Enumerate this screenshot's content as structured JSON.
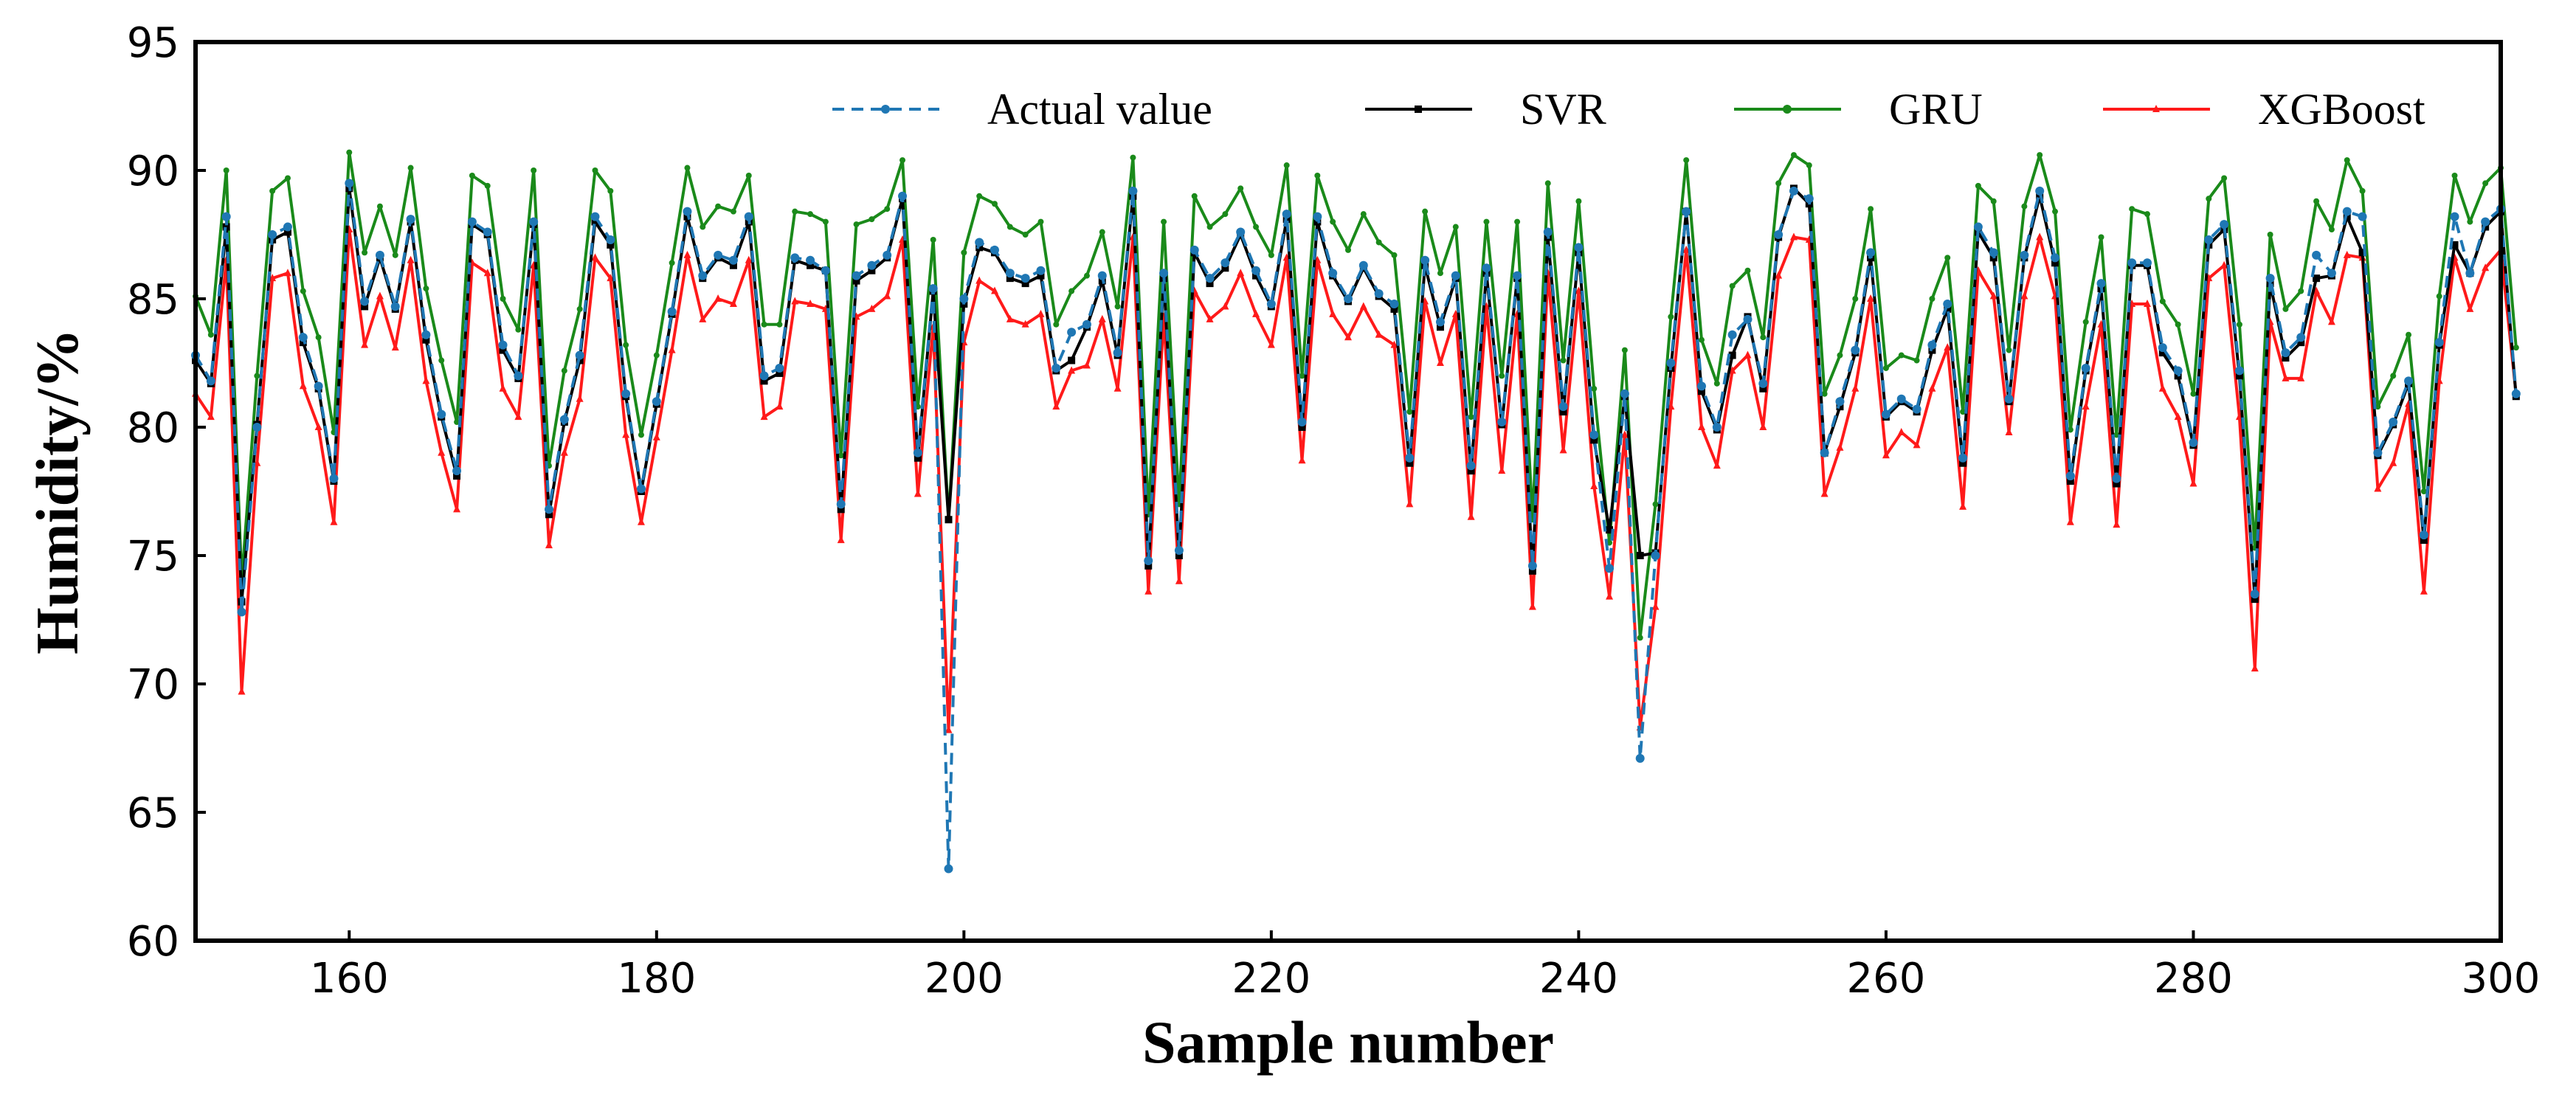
{
  "chart_data": {
    "type": "line",
    "title": "",
    "xlabel": "Sample number",
    "ylabel": "Humidity/%",
    "xlim": [
      150,
      300
    ],
    "ylim": [
      60,
      95
    ],
    "xticks": [
      160,
      180,
      200,
      220,
      240,
      260,
      280,
      300
    ],
    "yticks": [
      60,
      65,
      70,
      75,
      80,
      85,
      90,
      95
    ],
    "grid": false,
    "legend_position": "top",
    "x_start": 150,
    "x_step": 1,
    "series": [
      {
        "name": "Actual value",
        "color": "#1f77b4",
        "style": "dashed",
        "marker": "circle",
        "values": [
          82.8,
          81.8,
          88.2,
          72.8,
          80.0,
          87.5,
          87.8,
          83.5,
          81.6,
          78.0,
          89.5,
          84.9,
          86.7,
          84.7,
          88.1,
          83.6,
          80.5,
          78.3,
          88.0,
          87.6,
          83.2,
          82.0,
          88.0,
          76.8,
          80.3,
          82.8,
          88.2,
          87.3,
          81.3,
          77.6,
          81.0,
          84.5,
          88.4,
          85.9,
          86.7,
          86.5,
          88.2,
          82.0,
          82.3,
          86.6,
          86.5,
          86.1,
          77.0,
          85.9,
          86.3,
          86.7,
          89.0,
          79.0,
          85.4,
          62.8,
          85.0,
          87.2,
          86.9,
          86.0,
          85.8,
          86.1,
          82.3,
          83.7,
          84.0,
          85.9,
          82.9,
          89.2,
          74.8,
          86.0,
          75.2,
          86.9,
          85.8,
          86.4,
          87.6,
          86.1,
          84.8,
          88.3,
          80.2,
          88.2,
          86.0,
          85.0,
          86.3,
          85.2,
          84.8,
          78.8,
          86.5,
          84.1,
          85.9,
          78.5,
          86.2,
          80.2,
          85.9,
          74.6,
          87.6,
          80.8,
          87.0,
          79.7,
          74.5,
          81.3,
          67.1,
          75.0,
          82.5,
          88.4,
          81.6,
          80.0,
          83.6,
          84.2,
          81.7,
          87.5,
          89.2,
          88.9,
          79.0,
          81.0,
          83.0,
          86.8,
          80.5,
          81.1,
          80.7,
          83.2,
          84.8,
          78.8,
          87.8,
          86.8,
          81.1,
          86.7,
          89.2,
          86.6,
          78.1,
          82.3,
          85.6,
          78.0,
          86.4,
          86.4,
          83.1,
          82.2,
          79.4,
          87.3,
          87.9,
          82.2,
          73.5,
          85.8,
          82.9,
          83.5,
          86.7,
          86.0,
          88.4,
          88.2,
          79.0,
          80.2,
          81.8,
          75.8,
          83.3,
          88.2,
          86.0,
          88.0,
          88.5,
          81.3
        ]
      },
      {
        "name": "SVR",
        "color": "#000000",
        "style": "solid",
        "marker": "square",
        "values": [
          82.6,
          81.7,
          87.8,
          73.2,
          80.1,
          87.3,
          87.6,
          83.3,
          81.5,
          77.9,
          89.3,
          84.7,
          86.6,
          84.6,
          88.0,
          83.4,
          80.4,
          78.1,
          87.9,
          87.5,
          83.0,
          81.9,
          87.9,
          76.6,
          80.2,
          82.6,
          88.0,
          87.1,
          81.2,
          77.5,
          80.9,
          84.4,
          88.2,
          85.8,
          86.6,
          86.3,
          88.0,
          81.8,
          82.1,
          86.5,
          86.3,
          86.1,
          76.8,
          85.7,
          86.1,
          86.6,
          88.9,
          78.8,
          85.3,
          76.4,
          84.8,
          87.0,
          86.8,
          85.8,
          85.6,
          85.9,
          82.2,
          82.6,
          83.9,
          85.7,
          82.8,
          89.0,
          74.6,
          85.8,
          75.0,
          86.8,
          85.6,
          86.2,
          87.5,
          85.9,
          84.7,
          88.1,
          80.0,
          88.0,
          85.9,
          84.9,
          86.2,
          85.1,
          84.6,
          78.6,
          86.3,
          83.9,
          85.8,
          78.3,
          86.0,
          80.1,
          85.8,
          74.4,
          87.4,
          80.6,
          86.8,
          79.5,
          76.0,
          81.2,
          75.0,
          75.1,
          82.3,
          88.4,
          81.4,
          79.9,
          82.8,
          84.3,
          81.5,
          87.4,
          89.3,
          88.7,
          79.0,
          80.8,
          82.9,
          86.6,
          80.4,
          81.0,
          80.6,
          83.0,
          84.6,
          78.6,
          87.6,
          86.6,
          81.0,
          86.6,
          89.0,
          86.4,
          77.9,
          82.2,
          85.4,
          77.8,
          86.3,
          86.3,
          82.9,
          82.0,
          79.3,
          87.1,
          87.7,
          82.0,
          73.3,
          85.6,
          82.7,
          83.3,
          85.8,
          85.9,
          88.2,
          86.8,
          78.9,
          80.1,
          81.7,
          75.6,
          83.2,
          87.1,
          86.0,
          87.8,
          88.4,
          81.2
        ]
      },
      {
        "name": "GRU",
        "color": "#1a8a1a",
        "style": "solid",
        "marker": "circle",
        "values": [
          85.1,
          83.6,
          90.0,
          74.0,
          82.0,
          89.2,
          89.7,
          85.3,
          83.5,
          79.8,
          90.7,
          86.8,
          88.6,
          86.7,
          90.1,
          85.4,
          82.6,
          80.2,
          89.8,
          89.4,
          85.0,
          83.8,
          90.0,
          78.5,
          82.2,
          84.6,
          90.0,
          89.2,
          83.2,
          79.7,
          82.8,
          86.4,
          90.1,
          87.8,
          88.6,
          88.4,
          89.8,
          84.0,
          84.0,
          88.4,
          88.3,
          88.0,
          78.9,
          87.9,
          88.1,
          88.5,
          90.4,
          80.8,
          87.3,
          76.4,
          86.8,
          89.0,
          88.7,
          87.8,
          87.5,
          88.0,
          84.0,
          85.3,
          85.9,
          87.6,
          84.7,
          90.5,
          76.6,
          88.0,
          77.0,
          89.0,
          87.8,
          88.3,
          89.3,
          87.8,
          86.7,
          90.2,
          82.0,
          89.8,
          88.0,
          86.9,
          88.3,
          87.2,
          86.7,
          80.6,
          88.4,
          86.0,
          87.8,
          80.4,
          88.0,
          82.0,
          88.0,
          76.4,
          89.5,
          82.6,
          88.8,
          81.5,
          75.5,
          83.0,
          71.8,
          77.0,
          84.3,
          90.4,
          83.4,
          81.7,
          85.5,
          86.1,
          83.5,
          89.5,
          90.6,
          90.2,
          81.3,
          82.8,
          85.0,
          88.5,
          82.3,
          82.8,
          82.6,
          85.0,
          86.6,
          80.6,
          89.4,
          88.8,
          83.0,
          88.6,
          90.6,
          88.4,
          79.9,
          84.1,
          87.4,
          79.7,
          88.5,
          88.3,
          84.9,
          84.0,
          81.3,
          88.9,
          89.7,
          84.0,
          75.3,
          87.5,
          84.6,
          85.3,
          88.8,
          87.7,
          90.4,
          89.2,
          80.8,
          82.0,
          83.6,
          77.5,
          85.1,
          89.8,
          88.0,
          89.5,
          90.1,
          83.1
        ]
      },
      {
        "name": "XGBoost",
        "color": "#ff1a1a",
        "style": "solid",
        "marker": "triangle",
        "values": [
          81.3,
          80.4,
          86.5,
          69.7,
          78.6,
          85.8,
          86.0,
          81.6,
          80.0,
          76.3,
          87.7,
          83.2,
          85.1,
          83.1,
          86.5,
          81.8,
          79.0,
          76.8,
          86.4,
          86.0,
          81.5,
          80.4,
          86.3,
          75.4,
          79.0,
          81.1,
          86.6,
          85.8,
          79.7,
          76.3,
          79.6,
          83.0,
          86.7,
          84.2,
          85.0,
          84.8,
          86.5,
          80.4,
          80.8,
          84.9,
          84.8,
          84.6,
          75.6,
          84.3,
          84.6,
          85.1,
          87.3,
          77.4,
          83.9,
          68.2,
          83.3,
          85.7,
          85.3,
          84.2,
          84.0,
          84.4,
          80.8,
          82.2,
          82.4,
          84.2,
          81.5,
          87.4,
          73.6,
          84.3,
          74.0,
          85.3,
          84.2,
          84.7,
          86.0,
          84.4,
          83.2,
          86.6,
          78.7,
          86.5,
          84.4,
          83.5,
          84.7,
          83.6,
          83.2,
          77.0,
          84.9,
          82.5,
          84.4,
          76.5,
          84.7,
          78.3,
          84.4,
          73.0,
          86.0,
          79.1,
          85.3,
          77.7,
          73.4,
          79.7,
          68.3,
          73.0,
          80.8,
          86.9,
          80.0,
          78.5,
          82.2,
          82.8,
          80.0,
          85.9,
          87.4,
          87.3,
          77.4,
          79.2,
          81.5,
          85.0,
          78.9,
          79.8,
          79.3,
          81.5,
          83.1,
          76.9,
          86.1,
          85.1,
          79.8,
          85.1,
          87.4,
          85.1,
          76.3,
          80.8,
          84.0,
          76.2,
          84.8,
          84.8,
          81.5,
          80.4,
          77.8,
          85.8,
          86.3,
          80.4,
          70.6,
          84.1,
          81.9,
          81.9,
          85.3,
          84.1,
          86.7,
          86.6,
          77.6,
          78.6,
          80.9,
          73.6,
          81.8,
          86.6,
          84.6,
          86.2,
          86.9,
          81.3
        ]
      }
    ]
  }
}
